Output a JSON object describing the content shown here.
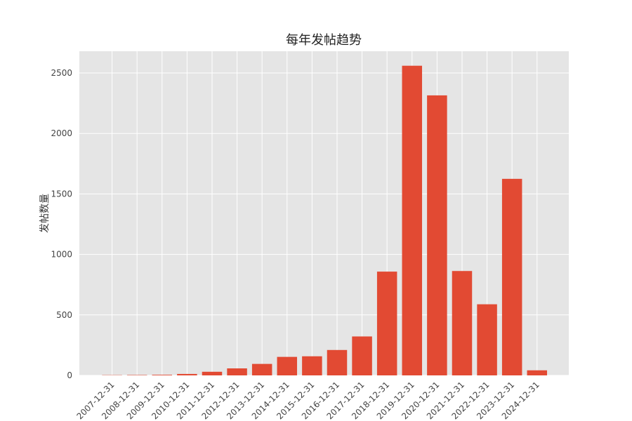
{
  "chart_data": {
    "type": "bar",
    "title": "每年发帖趋势",
    "xlabel": "",
    "ylabel": "发帖数量",
    "categories": [
      "2007-12-31",
      "2008-12-31",
      "2009-12-31",
      "2010-12-31",
      "2011-12-31",
      "2012-12-31",
      "2013-12-31",
      "2014-12-31",
      "2015-12-31",
      "2016-12-31",
      "2017-12-31",
      "2018-12-31",
      "2019-12-31",
      "2020-12-31",
      "2021-12-31",
      "2022-12-31",
      "2023-12-31",
      "2024-12-31"
    ],
    "values": [
      2,
      3,
      5,
      12,
      30,
      58,
      95,
      153,
      158,
      210,
      322,
      858,
      2560,
      2315,
      863,
      588,
      1625,
      42
    ],
    "yticks": [
      0,
      500,
      1000,
      1500,
      2000,
      2500
    ],
    "ylim": [
      0,
      2680
    ],
    "grid": true,
    "legend": false,
    "colors": {
      "bar": "#E24A33",
      "background": "#E5E5E5",
      "grid": "#FFFFFF"
    }
  }
}
